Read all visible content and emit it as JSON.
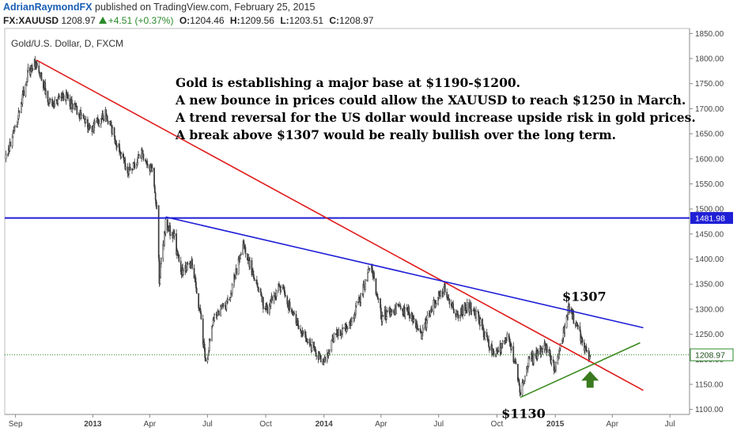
{
  "header": {
    "author": "AdrianRaymondFX",
    "published": "published on TradingView.com, February 25, 2015",
    "symbol": "FX:XAUUSD",
    "last": "1208.97",
    "change": "+4.51 (+0.37%)",
    "open_label": "O:",
    "open": "1204.46",
    "high_label": "H:",
    "high": "1209.56",
    "low_label": "L:",
    "low": "1203.51",
    "close_label": "C:",
    "close": "1208.97"
  },
  "chart_data": {
    "type": "candlestick",
    "title": "Gold/U.S. Dollar, D, FXCM",
    "ylim": [
      1090,
      1860
    ],
    "y_ticks": [
      1100,
      1150,
      1200,
      1250,
      1300,
      1350,
      1400,
      1450,
      1500,
      1550,
      1600,
      1650,
      1700,
      1750,
      1800,
      1850
    ],
    "x_range": [
      "2012-08-15",
      "2015-08-01"
    ],
    "x_ticks": [
      {
        "date": "2012-09-01",
        "label": "Sep",
        "bold": false
      },
      {
        "date": "2013-01-01",
        "label": "2013",
        "bold": true
      },
      {
        "date": "2013-04-01",
        "label": "Apr",
        "bold": false
      },
      {
        "date": "2013-07-01",
        "label": "Jul",
        "bold": false
      },
      {
        "date": "2013-10-01",
        "label": "Oct",
        "bold": false
      },
      {
        "date": "2014-01-01",
        "label": "2014",
        "bold": true
      },
      {
        "date": "2014-04-01",
        "label": "Apr",
        "bold": false
      },
      {
        "date": "2014-07-01",
        "label": "Jul",
        "bold": false
      },
      {
        "date": "2014-10-01",
        "label": "Oct",
        "bold": false
      },
      {
        "date": "2015-01-01",
        "label": "2015",
        "bold": true
      },
      {
        "date": "2015-04-01",
        "label": "Apr",
        "bold": false
      },
      {
        "date": "2015-07-01",
        "label": "Jul",
        "bold": false
      }
    ],
    "price_path": [
      [
        "2012-08-17",
        1600
      ],
      [
        "2012-09-07",
        1690
      ],
      [
        "2012-09-20",
        1770
      ],
      [
        "2012-10-04",
        1795
      ],
      [
        "2012-10-25",
        1710
      ],
      [
        "2012-11-15",
        1730
      ],
      [
        "2012-12-05",
        1700
      ],
      [
        "2012-12-28",
        1660
      ],
      [
        "2013-01-21",
        1690
      ],
      [
        "2013-02-15",
        1610
      ],
      [
        "2013-02-26",
        1570
      ],
      [
        "2013-03-20",
        1610
      ],
      [
        "2013-04-05",
        1575
      ],
      [
        "2013-04-12",
        1500
      ],
      [
        "2013-04-16",
        1360
      ],
      [
        "2013-04-26",
        1470
      ],
      [
        "2013-05-10",
        1440
      ],
      [
        "2013-05-20",
        1370
      ],
      [
        "2013-06-05",
        1400
      ],
      [
        "2013-06-20",
        1290
      ],
      [
        "2013-06-28",
        1190
      ],
      [
        "2013-07-12",
        1290
      ],
      [
        "2013-08-01",
        1310
      ],
      [
        "2013-08-27",
        1430
      ],
      [
        "2013-09-10",
        1370
      ],
      [
        "2013-09-20",
        1340
      ],
      [
        "2013-10-01",
        1295
      ],
      [
        "2013-10-25",
        1350
      ],
      [
        "2013-11-15",
        1280
      ],
      [
        "2013-12-05",
        1240
      ],
      [
        "2013-12-31",
        1190
      ],
      [
        "2014-01-20",
        1250
      ],
      [
        "2014-02-10",
        1270
      ],
      [
        "2014-03-01",
        1330
      ],
      [
        "2014-03-17",
        1390
      ],
      [
        "2014-04-01",
        1285
      ],
      [
        "2014-04-25",
        1300
      ],
      [
        "2014-05-15",
        1295
      ],
      [
        "2014-06-02",
        1245
      ],
      [
        "2014-06-25",
        1315
      ],
      [
        "2014-07-10",
        1340
      ],
      [
        "2014-07-31",
        1285
      ],
      [
        "2014-08-15",
        1310
      ],
      [
        "2014-09-01",
        1285
      ],
      [
        "2014-09-15",
        1235
      ],
      [
        "2014-10-01",
        1210
      ],
      [
        "2014-10-20",
        1250
      ],
      [
        "2014-11-07",
        1135
      ],
      [
        "2014-11-20",
        1195
      ],
      [
        "2014-12-05",
        1210
      ],
      [
        "2014-12-15",
        1230
      ],
      [
        "2014-12-31",
        1185
      ],
      [
        "2015-01-12",
        1240
      ],
      [
        "2015-01-22",
        1302
      ],
      [
        "2015-02-05",
        1265
      ],
      [
        "2015-02-16",
        1220
      ],
      [
        "2015-02-25",
        1209
      ]
    ],
    "last_price": 1208.97,
    "horizontal_line": {
      "value": 1481.98,
      "label": "1481.98",
      "color": "#1f1fd6"
    },
    "trendlines": [
      {
        "name": "",
        "color": "#e01b1b",
        "from": [
          "2012-10-04",
          1797
        ],
        "to": [
          "2015-05-20",
          1138
        ]
      },
      {
        "name": "",
        "color": "#1f1fd6",
        "from": [
          "2013-04-26",
          1484
        ],
        "to": [
          "2015-05-20",
          1263
        ]
      },
      {
        "name": "",
        "color": "#3a8a1e",
        "from": [
          "2014-11-07",
          1124
        ],
        "to": [
          "2015-05-15",
          1233
        ]
      }
    ],
    "annotations": [
      {
        "text": "Gold is establishing a major base at $1190-$1200."
      },
      {
        "text": "A new bounce in prices could allow the XAUUSD to reach $1250 in March."
      },
      {
        "text": "A trend reversal for the US dollar would increase upside risk in gold prices."
      },
      {
        "text": "A break above $1307 would be really bullish over the long term."
      }
    ],
    "price_labels": [
      {
        "text": "$1307",
        "date": "2015-01-22",
        "value": 1307
      },
      {
        "text": "$1130",
        "date": "2014-11-07",
        "value": 1130
      }
    ],
    "arrow": {
      "color": "#3a7a1e",
      "date": "2015-02-25",
      "value": 1170
    },
    "colors": {
      "up_candle": "#2a2a2a",
      "down_candle": "#3a3a3a",
      "last_price_line": "#2a8a2a"
    }
  }
}
